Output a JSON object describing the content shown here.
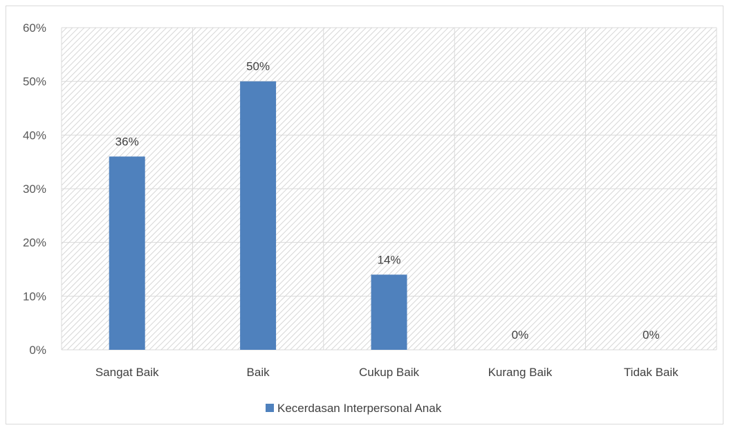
{
  "chart_data": {
    "type": "bar",
    "categories": [
      "Sangat Baik",
      "Baik",
      "Cukup Baik",
      "Kurang Baik",
      "Tidak Baik"
    ],
    "series": [
      {
        "name": "Kecerdasan Interpersonal Anak",
        "values": [
          36,
          50,
          14,
          0,
          0
        ],
        "color": "#4f81bd"
      }
    ],
    "data_labels": [
      "36%",
      "50%",
      "14%",
      "0%",
      "0%"
    ],
    "y_ticks": [
      0,
      10,
      20,
      30,
      40,
      50,
      60
    ],
    "y_tick_labels": [
      "0%",
      "10%",
      "20%",
      "30%",
      "40%",
      "50%",
      "60%"
    ],
    "ylim": [
      0,
      60
    ],
    "grid": true,
    "plot_fill": "hatched",
    "legend_position": "bottom",
    "title": "",
    "xlabel": "",
    "ylabel": ""
  }
}
